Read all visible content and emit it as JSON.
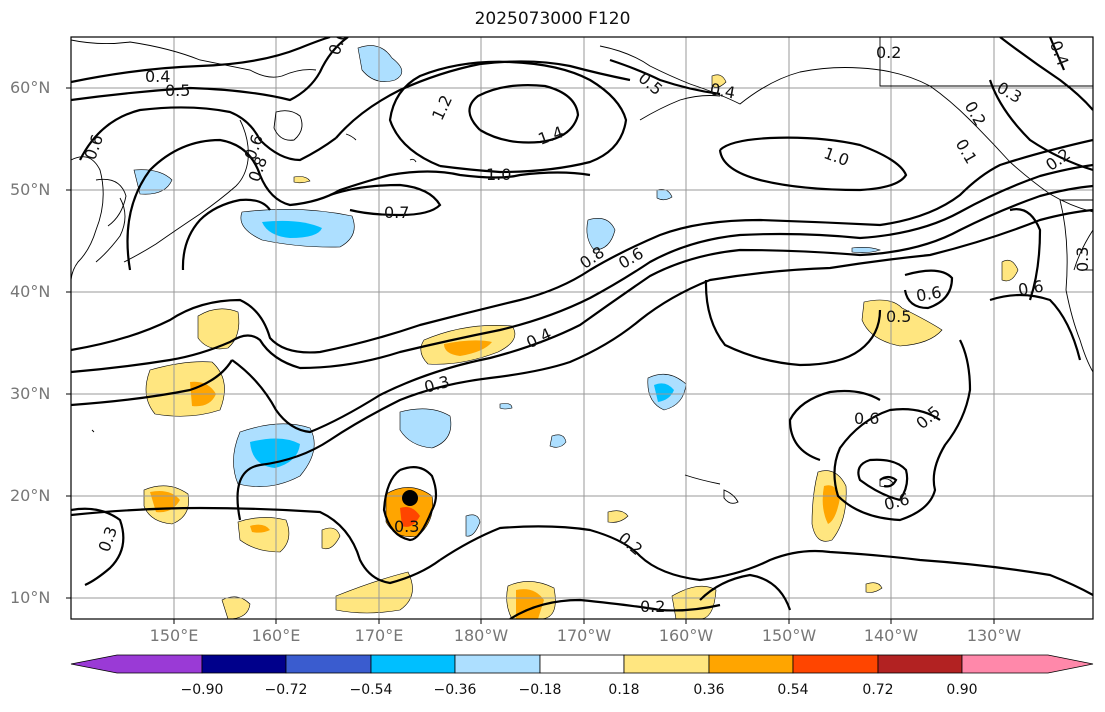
{
  "title": "2025073000 F120",
  "lat_labels": [
    "60°N",
    "50°N",
    "40°N",
    "30°N",
    "20°N",
    "10°N"
  ],
  "lon_labels": [
    "150°E",
    "160°E",
    "170°E",
    "180°W",
    "170°W",
    "160°W",
    "150°W",
    "140°W",
    "130°W"
  ],
  "colorbar": {
    "ticks": [
      "−0.90",
      "−0.72",
      "−0.54",
      "−0.36",
      "−0.18",
      "0.18",
      "0.36",
      "0.54",
      "0.72",
      "0.90"
    ],
    "colors": [
      "#9a3ad6",
      "#00008b",
      "#3a5ccf",
      "#00bfff",
      "#addfff",
      "#ffffff",
      "#ffe680",
      "#ffa500",
      "#ff4500",
      "#b22222",
      "#ff88aa"
    ]
  },
  "contour_labels": [
    "0.4",
    "0.5",
    "0.6",
    "0.6",
    "0.8",
    "0.6",
    "1.2",
    "1.4",
    "1.0",
    "1.0",
    "0.7",
    "0.8",
    "0.6",
    "0.4",
    "0.3",
    "0.4",
    "0.5",
    "0.6",
    "0.6",
    "0.5",
    "0.6",
    "0.5",
    "0.6",
    "0.3",
    "0.3",
    "0.2",
    "0.2",
    "0.2",
    "0.3",
    "0.2",
    "0.4",
    "0.3",
    "0.2",
    "0.1"
  ]
}
